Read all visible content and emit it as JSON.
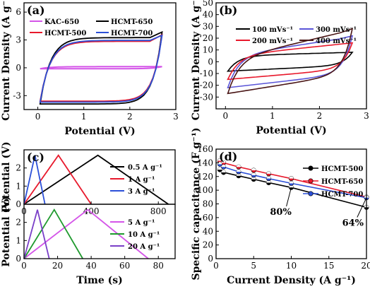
{
  "chart_data": [
    {
      "panel": "(a)",
      "type": "line",
      "xlabel": "Potential (V)",
      "ylabel": "Current Density (A g⁻¹)",
      "xlim": [
        -0.3,
        3
      ],
      "ylim": [
        -4.5,
        7
      ],
      "xticks": [
        0,
        1,
        2,
        3
      ],
      "yticks": [
        -3,
        0,
        3,
        6
      ],
      "legend_position": "top-left",
      "series": [
        {
          "name": "KAC-650",
          "color": "#d455e8",
          "loop": {
            "v0": 0.05,
            "v1": 2.7,
            "top": 0.12,
            "bottom": -0.1,
            "tail_top": 0.12,
            "tail_bottom": -0.1
          }
        },
        {
          "name": "HCMT-650",
          "color": "#000000",
          "loop": {
            "v0": 0.05,
            "v1": 2.7,
            "top": 3.25,
            "bottom": -3.9,
            "tail_top": 3.85,
            "tail_bottom": -3.0
          }
        },
        {
          "name": "HCMT-500",
          "color": "#e8192c",
          "loop": {
            "v0": 0.05,
            "v1": 2.7,
            "top": 2.85,
            "bottom": -3.6,
            "tail_top": 3.55,
            "tail_bottom": -2.8
          }
        },
        {
          "name": "HCMT-700",
          "color": "#2c50d8",
          "loop": {
            "v0": 0.05,
            "v1": 2.7,
            "top": 2.95,
            "bottom": -3.7,
            "tail_top": 3.5,
            "tail_bottom": -2.9
          }
        }
      ]
    },
    {
      "panel": "(b)",
      "type": "line",
      "xlabel": "Potential (V)",
      "ylabel": "Current Density (A g⁻¹)",
      "xlim": [
        -0.2,
        3
      ],
      "ylim": [
        -40,
        50
      ],
      "xticks": [
        0,
        1,
        2,
        3
      ],
      "yticks": [
        -30,
        -20,
        -10,
        0,
        10,
        20,
        30,
        40,
        50
      ],
      "legend_position": "top",
      "series": [
        {
          "name": "100 mVs⁻¹",
          "color": "#000000",
          "loop": {
            "v0": 0.05,
            "v1": 2.7,
            "top_start": 5,
            "top_end": 8,
            "bottom_start": -8,
            "bottom_end": -3,
            "tail_top": 8,
            "tail_bottom": -3
          }
        },
        {
          "name": "300 mVs⁻¹",
          "color": "#5a55d8",
          "loop": {
            "v0": 0.05,
            "v1": 2.7,
            "top_start": 5,
            "top_end": 21,
            "bottom_start": -22,
            "bottom_end": -10,
            "tail_top": 22,
            "tail_bottom": -10
          }
        },
        {
          "name": "200 mVs⁻¹",
          "color": "#e8192c",
          "loop": {
            "v0": 0.05,
            "v1": 2.7,
            "top_start": 5,
            "top_end": 16,
            "bottom_start": -15,
            "bottom_end": -6,
            "tail_top": 16,
            "tail_bottom": -6
          }
        },
        {
          "name": "400 mVs⁻¹",
          "color": "#4a1616",
          "loop": {
            "v0": 0.05,
            "v1": 2.7,
            "top_start": 2,
            "top_end": 27,
            "bottom_start": -27,
            "bottom_end": -10,
            "tail_top": 28,
            "tail_bottom": -10
          }
        }
      ]
    },
    {
      "panel": "(c)",
      "type": "line",
      "ylabel": "Potential (V)",
      "xlabel": "",
      "xlim": [
        0,
        900
      ],
      "ylim": [
        0,
        3
      ],
      "xticks": [
        0,
        400,
        800
      ],
      "yticks": [
        0,
        1,
        2
      ],
      "legend_position": "right",
      "series": [
        {
          "name": "0.5 A g⁻¹",
          "color": "#000000",
          "x": [
            0,
            440,
            860
          ],
          "y": [
            0,
            2.7,
            0
          ]
        },
        {
          "name": "1 A g⁻¹",
          "color": "#e8192c",
          "x": [
            0,
            205,
            400
          ],
          "y": [
            0,
            2.7,
            0
          ]
        },
        {
          "name": "3 A g⁻¹",
          "color": "#2c50d8",
          "x": [
            0,
            65,
            125
          ],
          "y": [
            0,
            2.7,
            0
          ]
        }
      ]
    },
    {
      "panel": "(c)",
      "type": "line",
      "ylabel": "Potential (V)",
      "xlabel": "Time (s)",
      "xlim": [
        0,
        90
      ],
      "ylim": [
        0,
        3
      ],
      "xticks": [
        0,
        20,
        40,
        60,
        80
      ],
      "yticks": [
        0,
        1,
        2
      ],
      "legend_position": "right",
      "series": [
        {
          "name": "5 A g⁻¹",
          "color": "#d455e8",
          "x": [
            0,
            38,
            74
          ],
          "y": [
            0,
            2.7,
            0
          ]
        },
        {
          "name": "10 A g⁻¹",
          "color": "#1f9a2e",
          "x": [
            0,
            18,
            35
          ],
          "y": [
            0,
            2.7,
            0
          ]
        },
        {
          "name": "20 A g⁻¹",
          "color": "#7a3fc8",
          "x": [
            0,
            8,
            15
          ],
          "y": [
            0,
            2.7,
            0
          ]
        }
      ]
    },
    {
      "panel": "(d)",
      "type": "line",
      "xlabel": "Current Density (A g⁻¹)",
      "ylabel": "Specific capacitance (F g⁻¹)",
      "xlim": [
        0,
        20
      ],
      "ylim": [
        0,
        160
      ],
      "xticks": [
        0,
        5,
        10,
        15,
        20
      ],
      "yticks": [
        0,
        20,
        40,
        60,
        80,
        100,
        120,
        140,
        160
      ],
      "legend_position": "top-right",
      "annotations": [
        {
          "text": "80%",
          "x": 8.6,
          "y": 64
        },
        {
          "text": "64%",
          "x": 18.2,
          "y": 48
        }
      ],
      "series": [
        {
          "name": "HCMT-500",
          "color": "#000000",
          "x": [
            0.5,
            1,
            3,
            5,
            7,
            10,
            20
          ],
          "y": [
            130,
            126,
            121,
            116,
            111,
            104,
            75
          ]
        },
        {
          "name": "HCMT-650",
          "color": "#e8192c",
          "x": [
            0.5,
            1,
            3,
            5,
            7,
            10,
            20
          ],
          "y": [
            143,
            140,
            134,
            129,
            124,
            117,
            90
          ]
        },
        {
          "name": "HCMT-700",
          "color": "#2c50d8",
          "x": [
            0.5,
            1,
            3,
            5,
            7,
            10,
            20
          ],
          "y": [
            138,
            134,
            127,
            122,
            117,
            110,
            89
          ]
        }
      ]
    }
  ]
}
